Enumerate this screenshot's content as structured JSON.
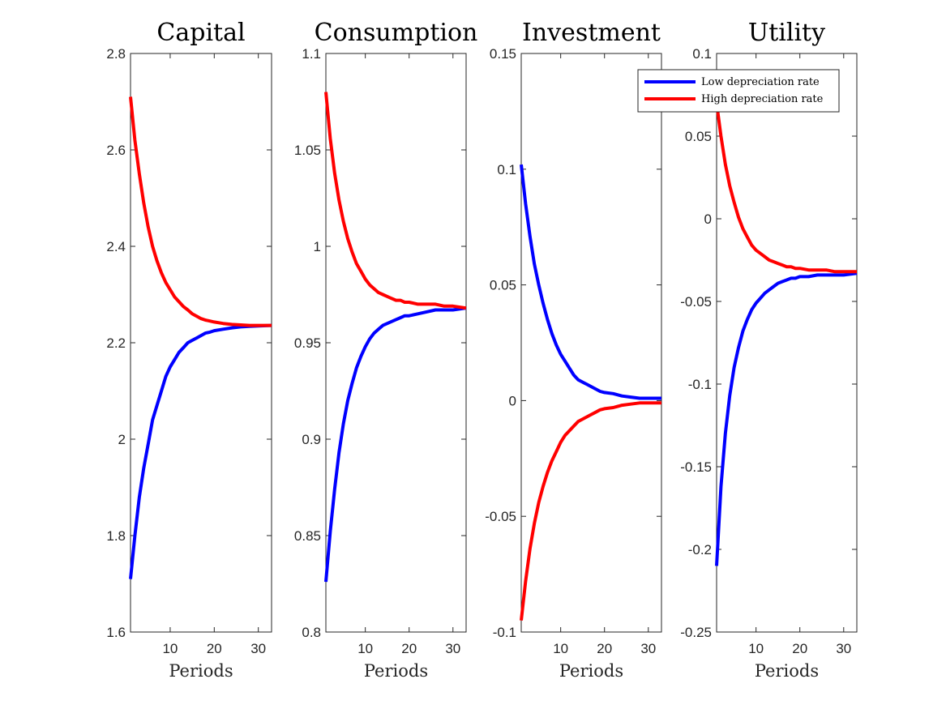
{
  "chart_data": [
    {
      "type": "line",
      "title": "Capital",
      "xlabel": "Periods",
      "ylabel": "",
      "xlim": [
        1,
        33
      ],
      "ylim": [
        1.6,
        2.8
      ],
      "xticks": [
        10,
        20,
        30
      ],
      "yticks": [
        1.6,
        1.8,
        2.0,
        2.2,
        2.4,
        2.6,
        2.8
      ],
      "ytick_labels": [
        "1.6",
        "1.8",
        "2",
        "2.2",
        "2.4",
        "2.6",
        "2.8"
      ],
      "x": [
        1,
        2,
        3,
        4,
        5,
        6,
        7,
        8,
        9,
        10,
        11,
        12,
        13,
        14,
        15,
        16,
        17,
        18,
        19,
        20,
        22,
        24,
        26,
        28,
        30,
        33
      ],
      "series": [
        {
          "name": "Low depreciation rate",
          "color": "#0000ff",
          "values": [
            1.71,
            1.8,
            1.88,
            1.94,
            1.99,
            2.04,
            2.07,
            2.1,
            2.13,
            2.15,
            2.165,
            2.18,
            2.19,
            2.2,
            2.205,
            2.21,
            2.215,
            2.22,
            2.222,
            2.225,
            2.228,
            2.231,
            2.233,
            2.234,
            2.235,
            2.236
          ]
        },
        {
          "name": "High depreciation rate",
          "color": "#ff0000",
          "values": [
            2.71,
            2.62,
            2.55,
            2.49,
            2.44,
            2.4,
            2.37,
            2.345,
            2.325,
            2.31,
            2.295,
            2.285,
            2.275,
            2.268,
            2.26,
            2.255,
            2.25,
            2.247,
            2.245,
            2.243,
            2.24,
            2.238,
            2.237,
            2.236,
            2.236,
            2.236
          ]
        }
      ]
    },
    {
      "type": "line",
      "title": "Consumption",
      "xlabel": "Periods",
      "ylabel": "",
      "xlim": [
        1,
        33
      ],
      "ylim": [
        0.8,
        1.1
      ],
      "xticks": [
        10,
        20,
        30
      ],
      "yticks": [
        0.8,
        0.85,
        0.9,
        0.95,
        1.0,
        1.05,
        1.1
      ],
      "ytick_labels": [
        "0.8",
        "0.85",
        "0.9",
        "0.95",
        "1",
        "1.05",
        "1.1"
      ],
      "x": [
        1,
        2,
        3,
        4,
        5,
        6,
        7,
        8,
        9,
        10,
        11,
        12,
        13,
        14,
        15,
        16,
        17,
        18,
        19,
        20,
        22,
        24,
        26,
        28,
        30,
        33
      ],
      "series": [
        {
          "name": "Low depreciation rate",
          "color": "#0000ff",
          "values": [
            0.826,
            0.852,
            0.874,
            0.893,
            0.908,
            0.92,
            0.929,
            0.937,
            0.943,
            0.948,
            0.952,
            0.955,
            0.957,
            0.959,
            0.96,
            0.961,
            0.962,
            0.963,
            0.964,
            0.964,
            0.965,
            0.966,
            0.967,
            0.967,
            0.967,
            0.968
          ]
        },
        {
          "name": "High depreciation rate",
          "color": "#ff0000",
          "values": [
            1.08,
            1.056,
            1.038,
            1.024,
            1.013,
            1.004,
            0.997,
            0.991,
            0.987,
            0.983,
            0.98,
            0.978,
            0.976,
            0.975,
            0.974,
            0.973,
            0.972,
            0.972,
            0.971,
            0.971,
            0.97,
            0.97,
            0.97,
            0.969,
            0.969,
            0.968
          ]
        }
      ]
    },
    {
      "type": "line",
      "title": "Investment",
      "xlabel": "Periods",
      "ylabel": "",
      "xlim": [
        1,
        33
      ],
      "ylim": [
        -0.1,
        0.15
      ],
      "xticks": [
        10,
        20,
        30
      ],
      "yticks": [
        -0.1,
        -0.05,
        0,
        0.05,
        0.1,
        0.15
      ],
      "ytick_labels": [
        "-0.1",
        "-0.05",
        "0",
        "0.05",
        "0.1",
        "0.15"
      ],
      "x": [
        1,
        2,
        3,
        4,
        5,
        6,
        7,
        8,
        9,
        10,
        11,
        12,
        13,
        14,
        15,
        16,
        17,
        18,
        19,
        20,
        22,
        24,
        26,
        28,
        30,
        33
      ],
      "series": [
        {
          "name": "Low depreciation rate",
          "color": "#0000ff",
          "values": [
            0.102,
            0.085,
            0.071,
            0.059,
            0.05,
            0.042,
            0.035,
            0.029,
            0.024,
            0.02,
            0.017,
            0.014,
            0.011,
            0.009,
            0.008,
            0.007,
            0.006,
            0.005,
            0.004,
            0.0035,
            0.003,
            0.002,
            0.0015,
            0.001,
            0.001,
            0.001
          ]
        },
        {
          "name": "High depreciation rate",
          "color": "#ff0000",
          "values": [
            -0.095,
            -0.078,
            -0.064,
            -0.053,
            -0.044,
            -0.037,
            -0.031,
            -0.026,
            -0.022,
            -0.018,
            -0.015,
            -0.013,
            -0.011,
            -0.009,
            -0.008,
            -0.007,
            -0.006,
            -0.005,
            -0.004,
            -0.0035,
            -0.003,
            -0.002,
            -0.0015,
            -0.001,
            -0.001,
            -0.001
          ]
        }
      ]
    },
    {
      "type": "line",
      "title": "Utility",
      "xlabel": "Periods",
      "ylabel": "",
      "xlim": [
        1,
        33
      ],
      "ylim": [
        -0.25,
        0.1
      ],
      "xticks": [
        10,
        20,
        30
      ],
      "yticks": [
        -0.25,
        -0.2,
        -0.15,
        -0.1,
        -0.05,
        0,
        0.05,
        0.1
      ],
      "ytick_labels": [
        "-0.25",
        "-0.2",
        "-0.15",
        "-0.1",
        "-0.05",
        "0",
        "0.05",
        "0.1"
      ],
      "x": [
        1,
        2,
        3,
        4,
        5,
        6,
        7,
        8,
        9,
        10,
        11,
        12,
        13,
        14,
        15,
        16,
        17,
        18,
        19,
        20,
        22,
        24,
        26,
        28,
        30,
        33
      ],
      "series": [
        {
          "name": "Low depreciation rate",
          "color": "#0000ff",
          "values": [
            -0.21,
            -0.162,
            -0.13,
            -0.107,
            -0.09,
            -0.078,
            -0.068,
            -0.061,
            -0.055,
            -0.051,
            -0.048,
            -0.045,
            -0.043,
            -0.041,
            -0.039,
            -0.038,
            -0.037,
            -0.036,
            -0.036,
            -0.035,
            -0.035,
            -0.034,
            -0.034,
            -0.034,
            -0.034,
            -0.033
          ]
        },
        {
          "name": "High depreciation rate",
          "color": "#ff0000",
          "values": [
            0.07,
            0.05,
            0.033,
            0.02,
            0.01,
            0.001,
            -0.006,
            -0.011,
            -0.016,
            -0.019,
            -0.021,
            -0.023,
            -0.025,
            -0.026,
            -0.027,
            -0.028,
            -0.029,
            -0.029,
            -0.03,
            -0.03,
            -0.031,
            -0.031,
            -0.031,
            -0.032,
            -0.032,
            -0.032
          ]
        }
      ]
    }
  ],
  "legend": {
    "placement": "top-right",
    "entries": [
      {
        "label": "Low depreciation rate",
        "color": "#0000ff"
      },
      {
        "label": "High depreciation rate",
        "color": "#ff0000"
      }
    ]
  }
}
